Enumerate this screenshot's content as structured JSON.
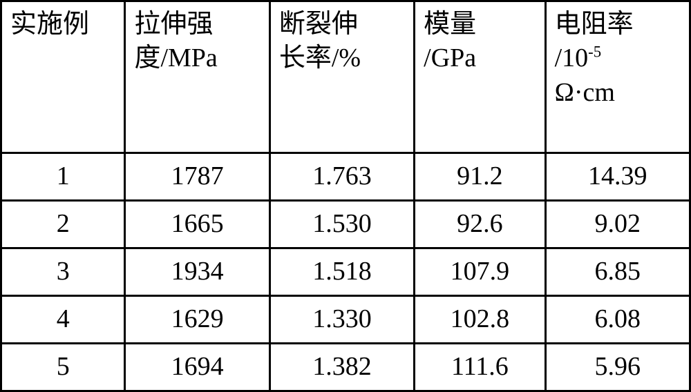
{
  "table": {
    "type": "table",
    "border_color": "#000000",
    "background_color": "#ffffff",
    "text_color": "#000000",
    "font_family": "SimSun",
    "header_fontsize": 38,
    "data_fontsize": 38,
    "border_width": 3,
    "columns": [
      {
        "label": "实施例",
        "width_pct": 18,
        "align": "left"
      },
      {
        "label_line1": "拉伸强",
        "label_line2": "度/MPa",
        "width_pct": 21,
        "align": "left"
      },
      {
        "label_line1": "断裂伸",
        "label_line2": "长率/%",
        "width_pct": 21,
        "align": "left"
      },
      {
        "label_line1": "模量",
        "label_line2": "/GPa",
        "width_pct": 19,
        "align": "left"
      },
      {
        "label_line1": "电阻率",
        "label_line2": "/10",
        "label_sup": "-5",
        "label_line3": "Ω·cm",
        "width_pct": 21,
        "align": "left"
      }
    ],
    "rows": [
      {
        "c1": "1",
        "c2": "1787",
        "c3": "1.763",
        "c4": "91.2",
        "c5": "14.39"
      },
      {
        "c1": "2",
        "c2": "1665",
        "c3": "1.530",
        "c4": "92.6",
        "c5": "9.02"
      },
      {
        "c1": "3",
        "c2": "1934",
        "c3": "1.518",
        "c4": "107.9",
        "c5": "6.85"
      },
      {
        "c1": "4",
        "c2": "1629",
        "c3": "1.330",
        "c4": "102.8",
        "c5": "6.08"
      },
      {
        "c1": "5",
        "c2": "1694",
        "c3": "1.382",
        "c4": "111.6",
        "c5": "5.96"
      }
    ]
  }
}
